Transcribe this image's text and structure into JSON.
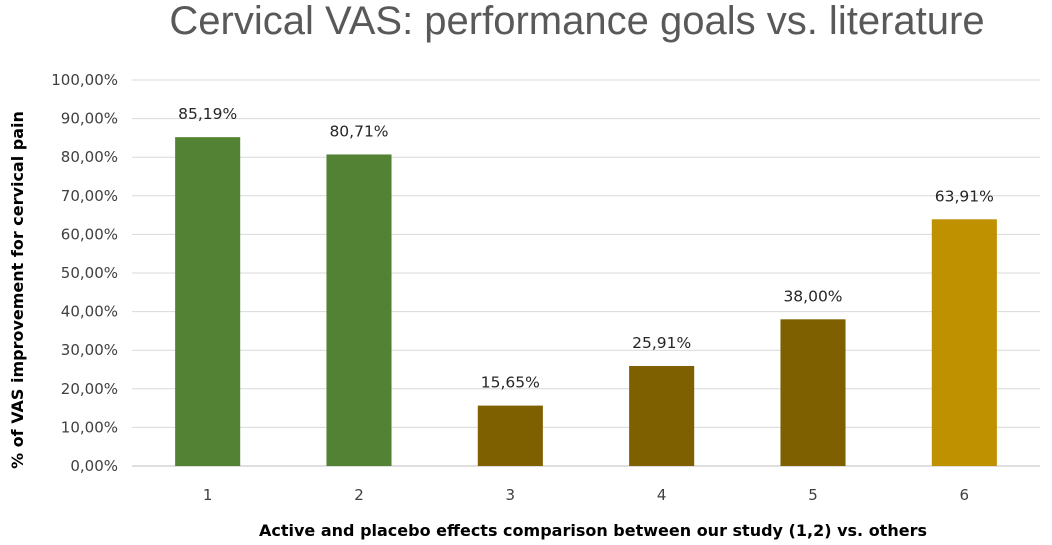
{
  "chart_data": {
    "type": "bar",
    "title": "Cervical VAS: performance goals vs. literature",
    "xlabel": "Active and placebo effects comparison between our study (1,2) vs. others",
    "ylabel": "% of VAS improvement for cervical pain",
    "categories": [
      "1",
      "2",
      "3",
      "4",
      "5",
      "6"
    ],
    "values": [
      85.19,
      80.71,
      15.65,
      25.91,
      38.0,
      63.91
    ],
    "data_labels": [
      "85,19%",
      "80,71%",
      "15,65%",
      "25,91%",
      "38,00%",
      "63,91%"
    ],
    "colors": [
      "#548235",
      "#548235",
      "#7f6000",
      "#7f6000",
      "#7f6000",
      "#bf9000"
    ],
    "ylim": [
      0,
      100
    ],
    "yticks": [
      0,
      10,
      20,
      30,
      40,
      50,
      60,
      70,
      80,
      90,
      100
    ],
    "ytick_labels": [
      "0,00%",
      "10,00%",
      "20,00%",
      "30,00%",
      "40,00%",
      "50,00%",
      "60,00%",
      "70,00%",
      "80,00%",
      "90,00%",
      "100,00%"
    ],
    "grid": true,
    "legend": "none"
  }
}
